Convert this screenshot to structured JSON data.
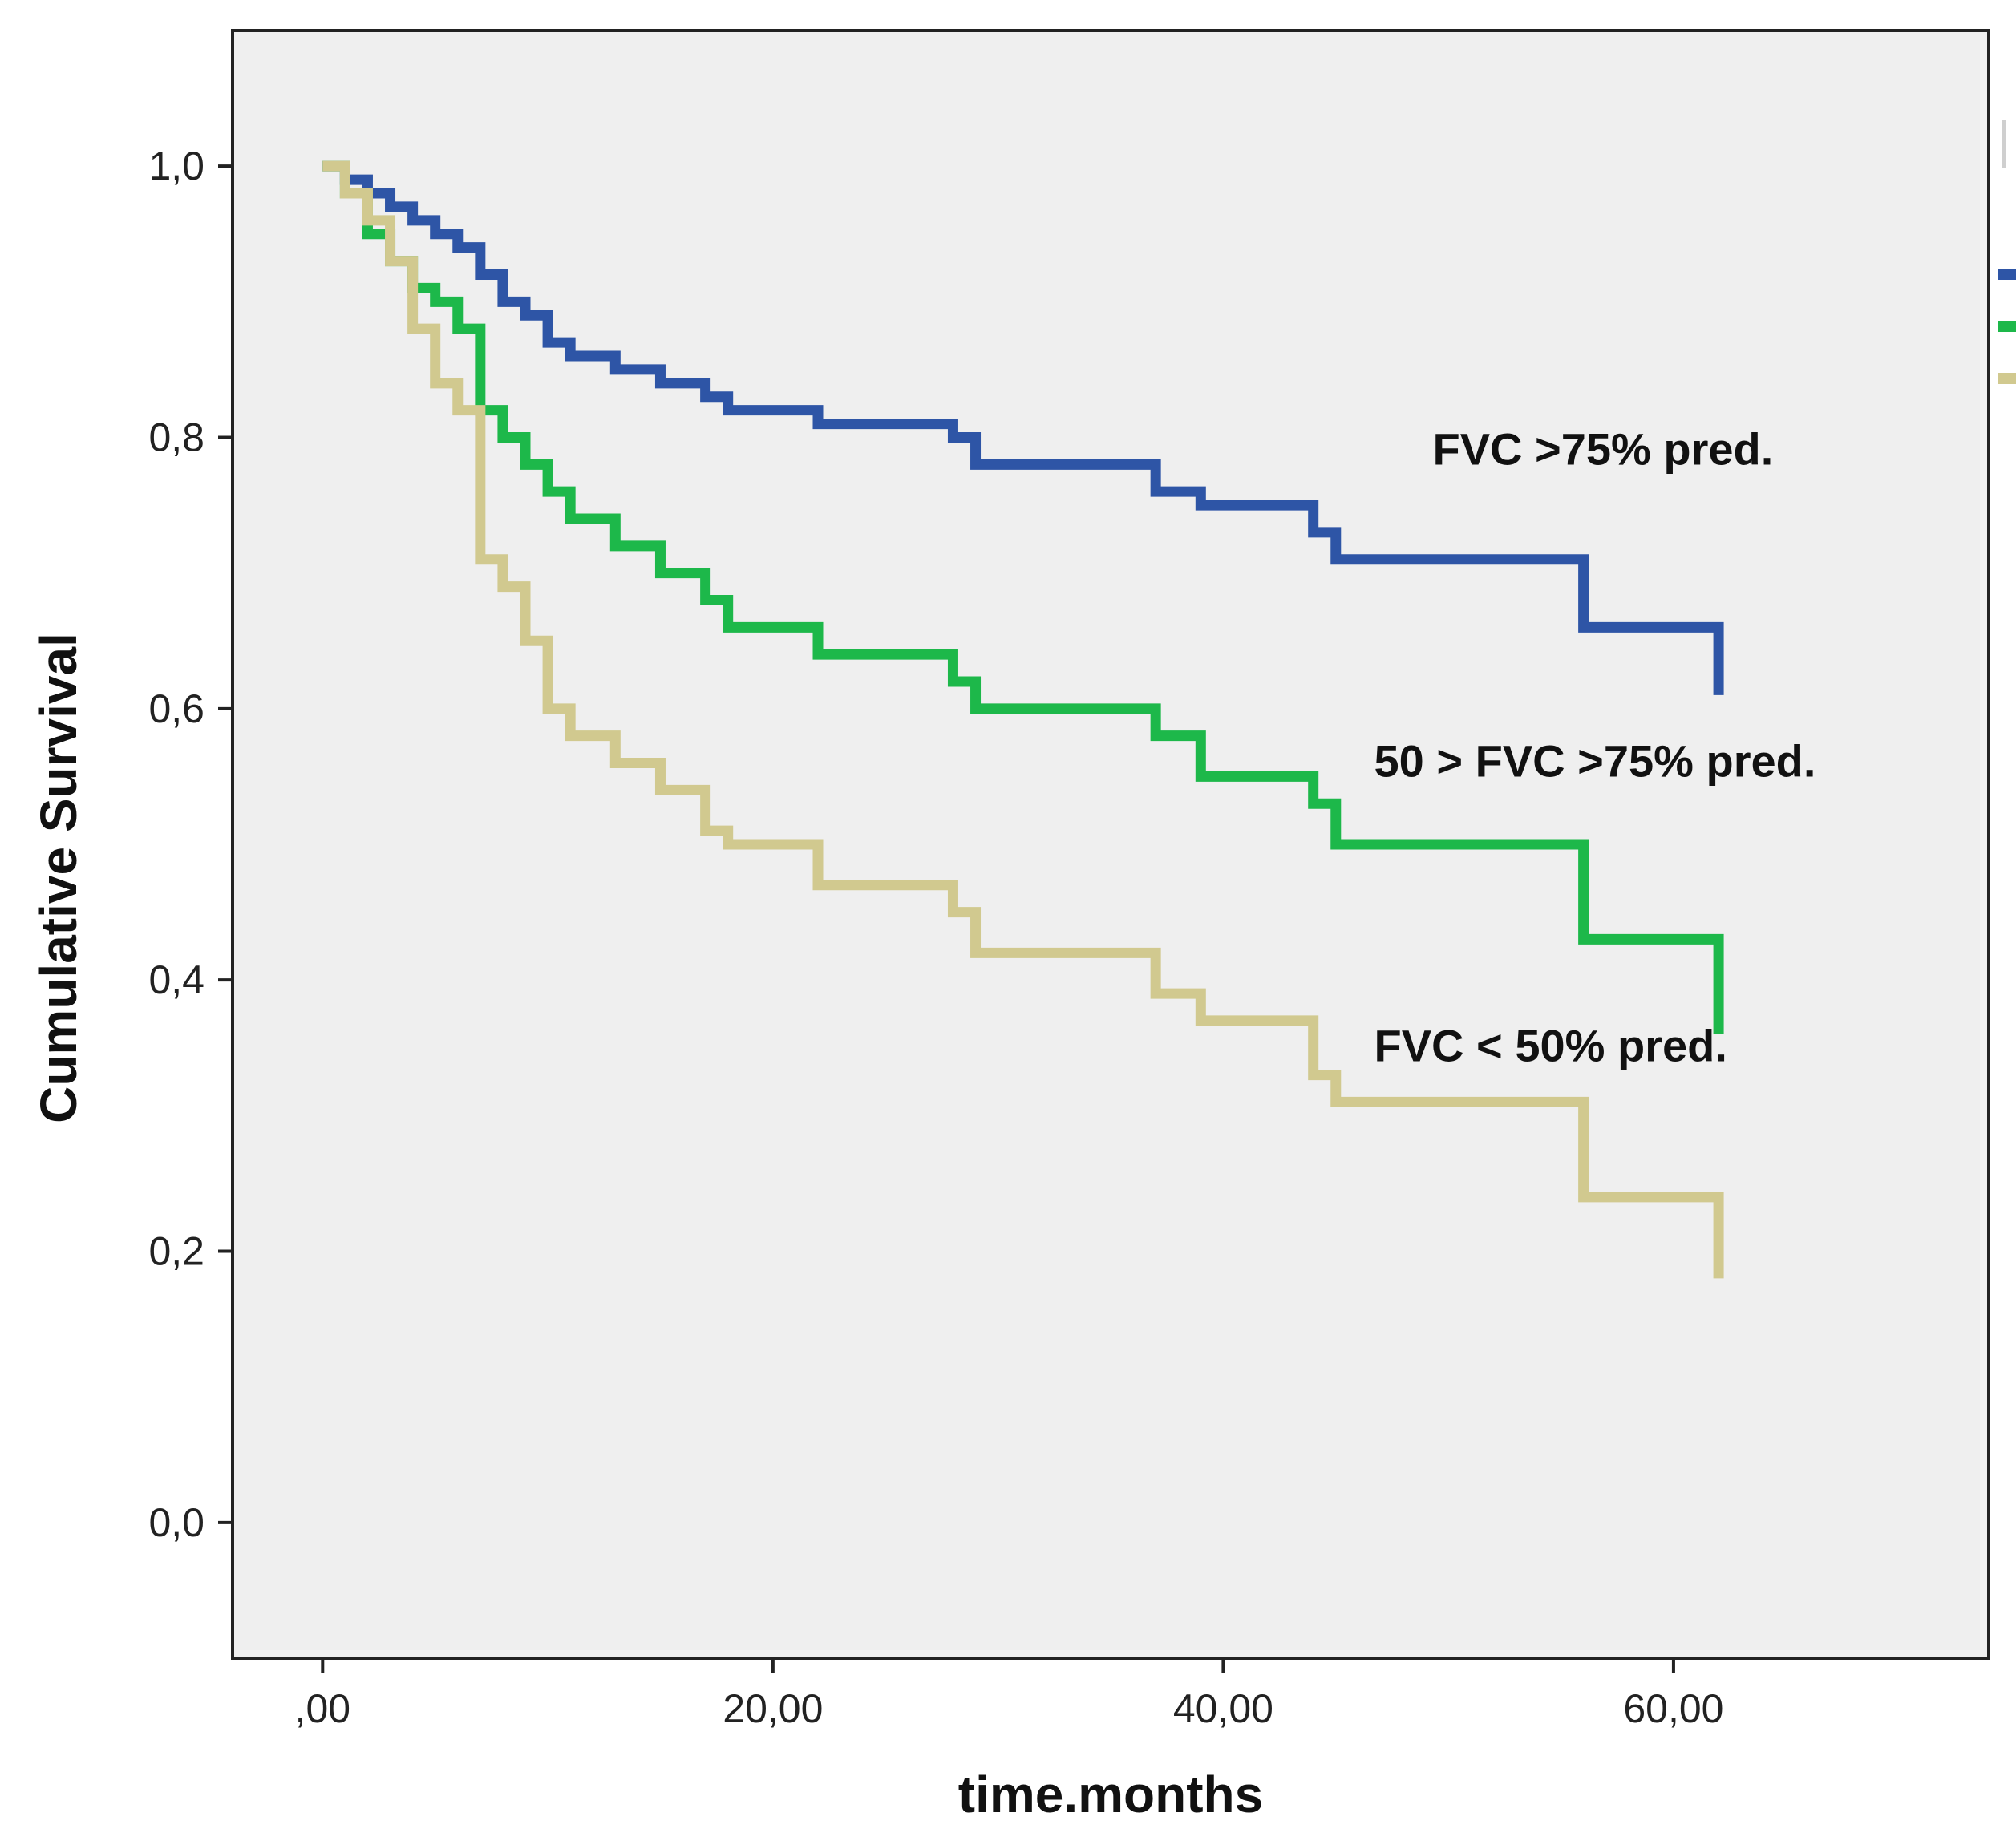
{
  "chart_data": {
    "type": "line",
    "subtype": "kaplan-meier-step",
    "title": "",
    "xlabel": "time.months",
    "ylabel": "Cumulative Survival",
    "xlim": [
      -4,
      74
    ],
    "ylim": [
      -0.1,
      1.1
    ],
    "x_ticks": [
      0,
      20,
      40,
      60
    ],
    "x_tick_labels": [
      ",00",
      "20,00",
      "40,00",
      "60,00"
    ],
    "y_ticks": [
      0.0,
      0.2,
      0.4,
      0.6,
      0.8,
      1.0
    ],
    "y_tick_labels": [
      "0,0",
      "0,2",
      "0,4",
      "0,6",
      "0,8",
      "1,0"
    ],
    "grid": false,
    "background": "#efefef",
    "series": [
      {
        "name": "FVC >75% pred.",
        "color": "#2e55a6",
        "steps": [
          [
            0,
            1.0
          ],
          [
            1,
            0.99
          ],
          [
            2,
            0.98
          ],
          [
            3,
            0.97
          ],
          [
            4,
            0.96
          ],
          [
            5,
            0.95
          ],
          [
            6,
            0.94
          ],
          [
            7,
            0.92
          ],
          [
            8,
            0.9
          ],
          [
            9,
            0.89
          ],
          [
            10,
            0.87
          ],
          [
            11,
            0.86
          ],
          [
            13,
            0.85
          ],
          [
            15,
            0.84
          ],
          [
            17,
            0.83
          ],
          [
            18,
            0.82
          ],
          [
            22,
            0.81
          ],
          [
            28,
            0.8
          ],
          [
            29,
            0.78
          ],
          [
            37,
            0.76
          ],
          [
            39,
            0.75
          ],
          [
            44,
            0.73
          ],
          [
            45,
            0.71
          ],
          [
            56,
            0.66
          ],
          [
            62,
            0.61
          ]
        ]
      },
      {
        "name": "50 > FVC >75% pred.",
        "color": "#1db84a",
        "steps": [
          [
            0,
            1.0
          ],
          [
            1,
            0.98
          ],
          [
            2,
            0.95
          ],
          [
            3,
            0.93
          ],
          [
            4,
            0.91
          ],
          [
            5,
            0.9
          ],
          [
            6,
            0.88
          ],
          [
            7,
            0.87
          ],
          [
            7,
            0.82
          ],
          [
            8,
            0.8
          ],
          [
            9,
            0.78
          ],
          [
            10,
            0.76
          ],
          [
            11,
            0.74
          ],
          [
            13,
            0.72
          ],
          [
            15,
            0.7
          ],
          [
            17,
            0.68
          ],
          [
            18,
            0.66
          ],
          [
            22,
            0.64
          ],
          [
            28,
            0.62
          ],
          [
            29,
            0.6
          ],
          [
            37,
            0.58
          ],
          [
            39,
            0.55
          ],
          [
            44,
            0.53
          ],
          [
            45,
            0.5
          ],
          [
            56,
            0.43
          ],
          [
            62,
            0.36
          ]
        ]
      },
      {
        "name": "FVC < 50% pred.",
        "color": "#d1c98f",
        "steps": [
          [
            0,
            1.0
          ],
          [
            1,
            0.98
          ],
          [
            2,
            0.96
          ],
          [
            3,
            0.93
          ],
          [
            4,
            0.88
          ],
          [
            5,
            0.84
          ],
          [
            6,
            0.82
          ],
          [
            7,
            0.8
          ],
          [
            7,
            0.71
          ],
          [
            8,
            0.69
          ],
          [
            9,
            0.65
          ],
          [
            10,
            0.6
          ],
          [
            11,
            0.58
          ],
          [
            13,
            0.56
          ],
          [
            15,
            0.54
          ],
          [
            17,
            0.51
          ],
          [
            18,
            0.5
          ],
          [
            22,
            0.47
          ],
          [
            28,
            0.45
          ],
          [
            29,
            0.42
          ],
          [
            37,
            0.39
          ],
          [
            39,
            0.37
          ],
          [
            44,
            0.33
          ],
          [
            45,
            0.31
          ],
          [
            56,
            0.24
          ],
          [
            62,
            0.18
          ]
        ]
      }
    ],
    "annotations": [
      {
        "text": "FVC >75% pred.",
        "x": 49.3,
        "y": 0.78
      },
      {
        "text": "50 > FVC >75% pred.",
        "x": 46.7,
        "y": 0.55
      },
      {
        "text": "FVC < 50% pred.",
        "x": 46.7,
        "y": 0.34
      }
    ]
  }
}
